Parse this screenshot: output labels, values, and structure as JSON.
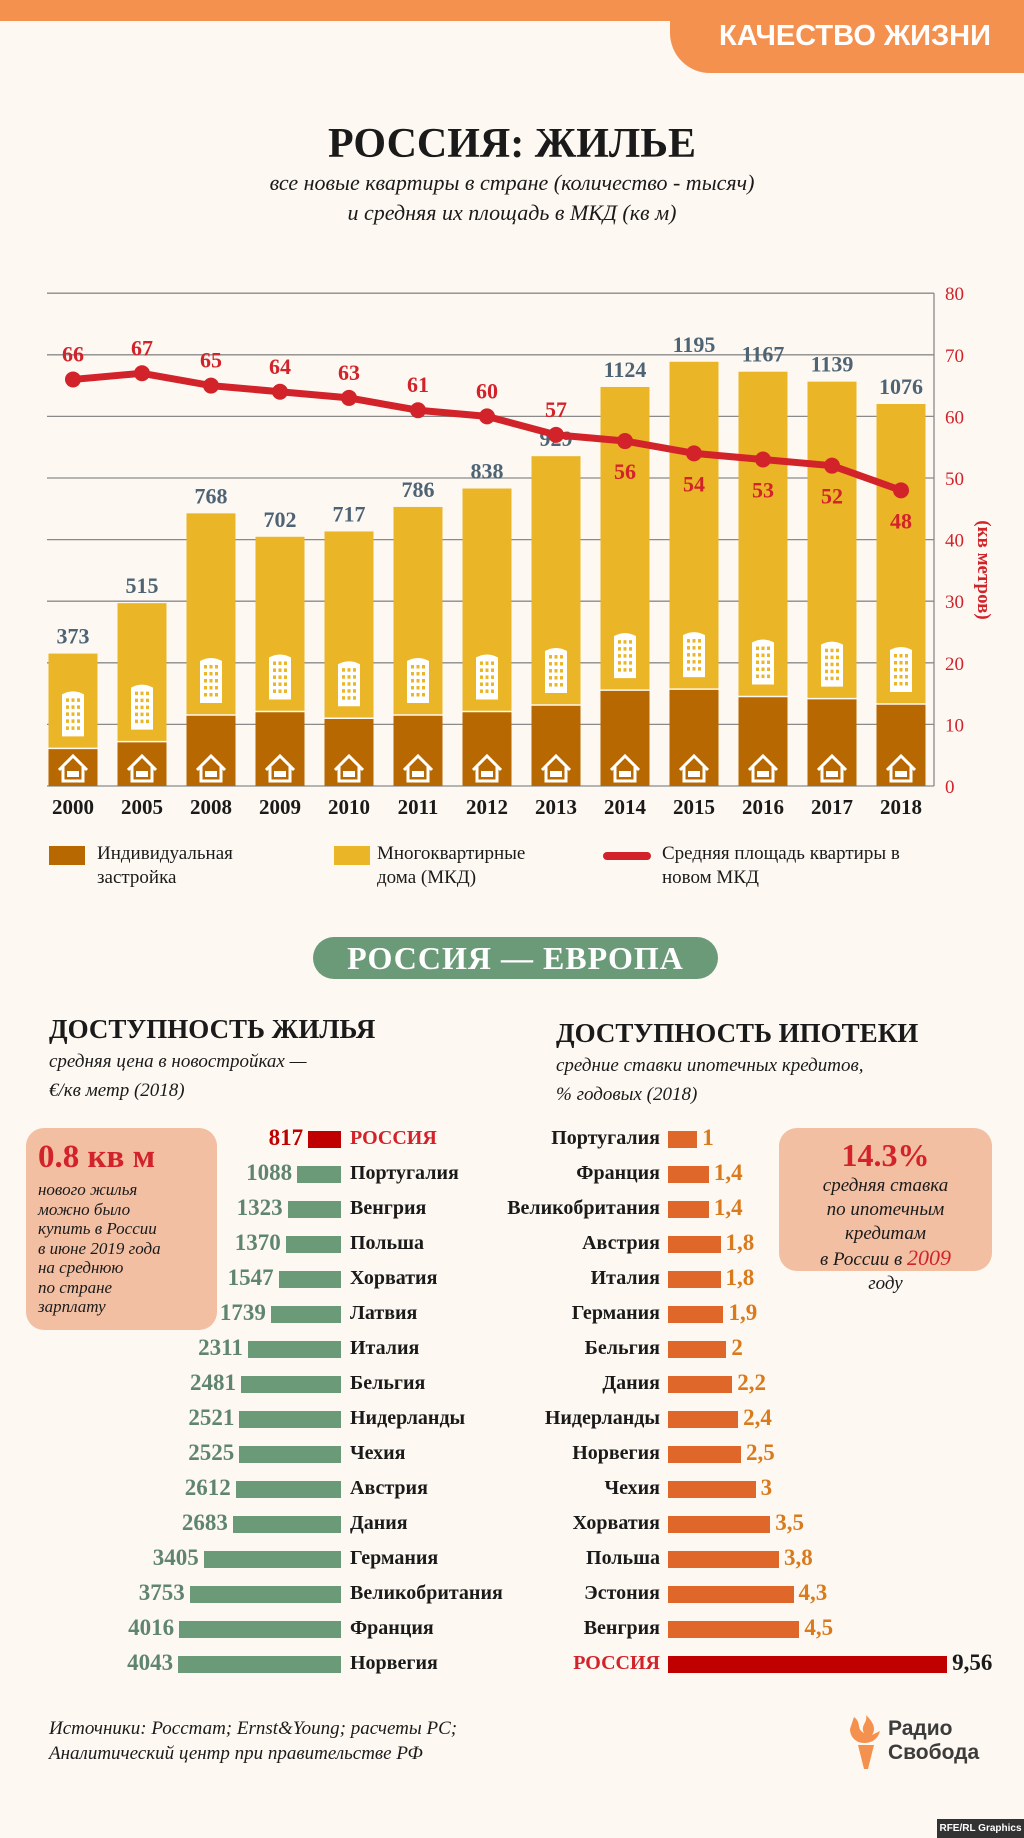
{
  "header": {
    "category_tag": "КАЧЕСТВО ЖИЗНИ",
    "title": "РОССИЯ: ЖИЛЬЕ",
    "subtitle_1": "все новые квартиры в стране (количество - тысяч)",
    "subtitle_2": "и средняя их площадь в МКД (кв м)"
  },
  "colors": {
    "accent": "#f5914f",
    "individual": "#b86800",
    "mkd": "#eab526",
    "line": "#d2232a",
    "green": "#6a9a78",
    "orange_bar": "#e0672a",
    "russia": "#c00000"
  },
  "chart_data": [
    {
      "type": "bar+line",
      "categories": [
        "2000",
        "2005",
        "2008",
        "2009",
        "2010",
        "2011",
        "2012",
        "2013",
        "2014",
        "2015",
        "2016",
        "2017",
        "2018"
      ],
      "totals_label_values": [
        373,
        515,
        768,
        702,
        717,
        786,
        838,
        929,
        1124,
        1195,
        1167,
        1139,
        1076
      ],
      "series": [
        {
          "name": "Индивидуальная застройка",
          "type": "stacked-bar",
          "values": [
            106,
            125,
            200,
            210,
            191,
            200,
            210,
            228,
            270,
            273,
            252,
            246,
            231
          ]
        },
        {
          "name": "Многоквартирные дома (МКД)",
          "type": "stacked-bar",
          "values": [
            267,
            390,
            568,
            492,
            526,
            586,
            628,
            701,
            854,
            922,
            915,
            893,
            845
          ]
        },
        {
          "name": "Средняя площадь квартиры в новом МКД",
          "type": "line",
          "axis": "right",
          "values": [
            66,
            67,
            65,
            64,
            63,
            61,
            60,
            57,
            56,
            54,
            53,
            52,
            48
          ]
        }
      ],
      "y_right_label": "(кв метров)",
      "y_right_range": [
        0,
        80
      ],
      "y_right_ticks": [
        0,
        10,
        20,
        30,
        40,
        50,
        60,
        70,
        80
      ],
      "grid": true,
      "legend": "bottom",
      "legend_items": [
        {
          "label": "Индивидуальная застройка"
        },
        {
          "label": "Многоквартирные дома (МКД)"
        },
        {
          "label": "Средняя площадь квартиры в новом МКД"
        }
      ]
    },
    {
      "type": "bar",
      "orientation": "horizontal",
      "title": "ДОСТУПНОСТЬ ЖИЛЬЯ",
      "subtitle_1": "средняя цена в новостройках —",
      "subtitle_2": "€/кв метр (2018)",
      "categories": [
        "РОССИЯ",
        "Португалия",
        "Венгрия",
        "Польша",
        "Хорватия",
        "Латвия",
        "Италия",
        "Бельгия",
        "Нидерланды",
        "Чехия",
        "Австрия",
        "Дания",
        "Германия",
        "Великобритания",
        "Франция",
        "Норвегия"
      ],
      "values": [
        817,
        1088,
        1323,
        1370,
        1547,
        1739,
        2311,
        2481,
        2521,
        2525,
        2612,
        2683,
        3405,
        3753,
        4016,
        4043
      ],
      "value_labels": [
        "817",
        "1088",
        "1323",
        "1370",
        "1547",
        "1739",
        "2311",
        "2481",
        "2521",
        "2525",
        "2612",
        "2683",
        "3405",
        "3753",
        "4016",
        "4043"
      ],
      "highlight": "РОССИЯ"
    },
    {
      "type": "bar",
      "orientation": "horizontal",
      "title": "ДОСТУПНОСТЬ ИПОТЕКИ",
      "subtitle_1": "средние ставки ипотечных кредитов,",
      "subtitle_2": "% годовых  (2018)",
      "categories": [
        "Португалия",
        "Франция",
        "Великобритания",
        "Австрия",
        "Италия",
        "Германия",
        "Бельгия",
        "Дания",
        "Нидерланды",
        "Норвегия",
        "Чехия",
        "Хорватия",
        "Польша",
        "Эстония",
        "Венгрия",
        "РОССИЯ"
      ],
      "values": [
        1,
        1.4,
        1.4,
        1.8,
        1.8,
        1.9,
        2,
        2.2,
        2.4,
        2.5,
        3,
        3.5,
        3.8,
        4.3,
        4.5,
        9.56
      ],
      "value_labels": [
        "1",
        "1,4",
        "1,4",
        "1,8",
        "1,8",
        "1,9",
        "2",
        "2,2",
        "2,4",
        "2,5",
        "3",
        "3,5",
        "3,8",
        "4,3",
        "4,5",
        "9,56"
      ],
      "highlight": "РОССИЯ"
    }
  ],
  "section_pill": "РОССИЯ — ЕВРОПА",
  "left_callout": {
    "big": "0.8 кв м",
    "lines": [
      "нового жилья",
      "можно было",
      "купить в России",
      "в июне 2019 года",
      "на среднюю",
      "по стране",
      "зарплату"
    ]
  },
  "right_callout": {
    "big": "14.3%",
    "line_1": "средняя ставка",
    "line_2": "по ипотечным",
    "line_3": "кредитам",
    "line_4_prefix": "в России в ",
    "line_4_year": "2009",
    "line_5": "году"
  },
  "footer": {
    "sources_1": "Источники: Росстат; Ernst&Young; расчеты РС;",
    "sources_2": "Аналитический центр при правительстве РФ",
    "logo_1": "Радио",
    "logo_2": "Свобода",
    "badge": "RFE/RL Graphics"
  }
}
